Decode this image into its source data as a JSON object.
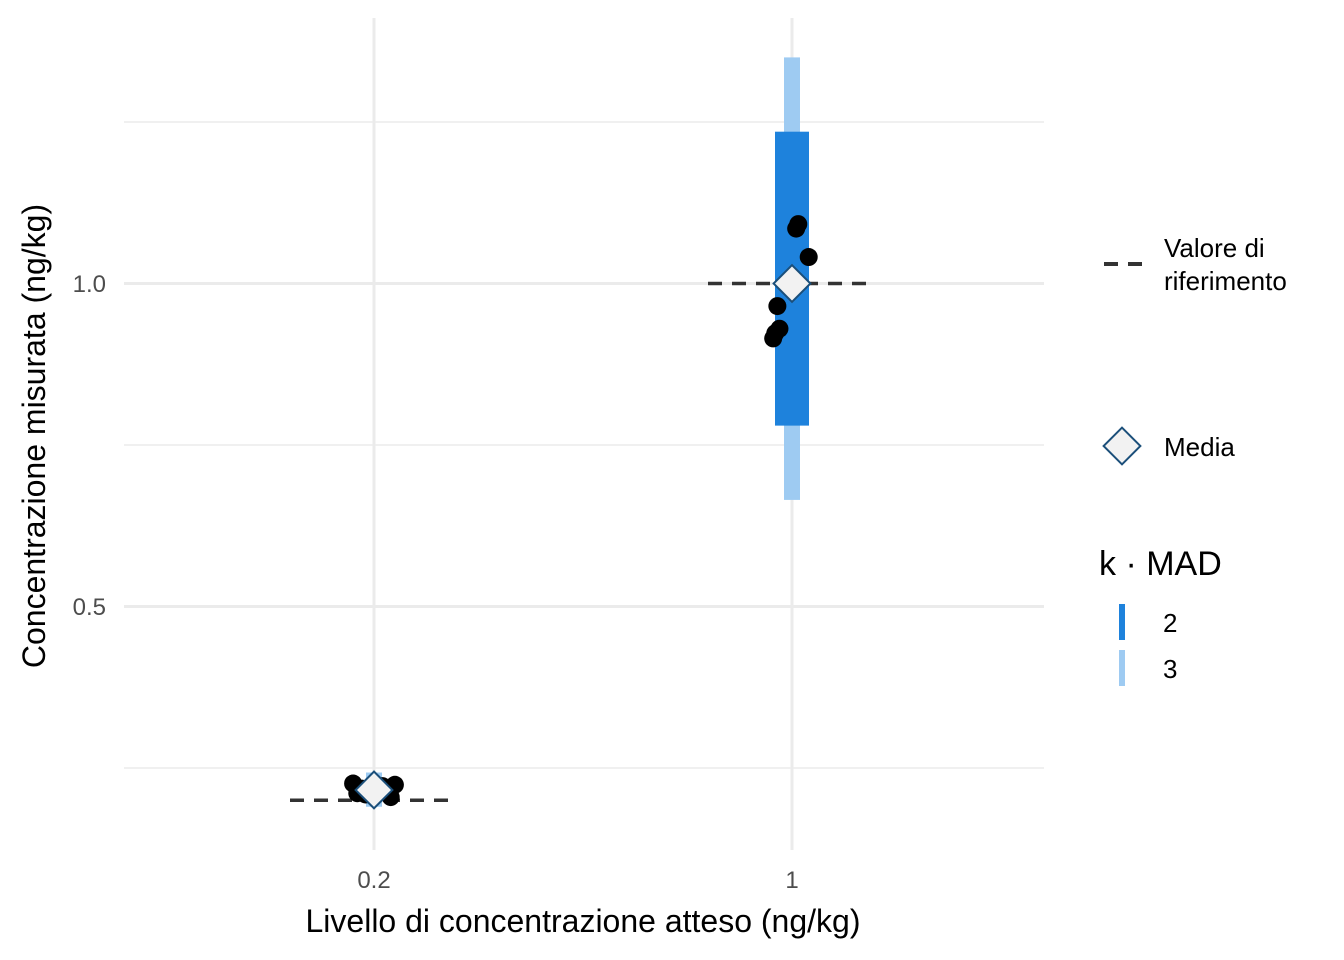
{
  "chart_data": {
    "type": "scatter",
    "xlabel": "Livello di concentrazione atteso (ng/kg)",
    "ylabel": "Concentrazione misurata (ng/kg)",
    "x_categories": [
      "0.2",
      "1"
    ],
    "y_ticks": [
      "0.5",
      "1.0"
    ],
    "ylim": [
      0.18,
      1.44
    ],
    "grid": true,
    "legend_position": "right",
    "groups": [
      {
        "category": "0.2",
        "reference": 0.2,
        "mean": 0.216,
        "mad2": [
          0.205,
          0.227
        ],
        "mad3": [
          0.19,
          0.243
        ],
        "points": [
          {
            "dx": -0.05,
            "y": 0.226
          },
          {
            "dx": -0.03,
            "y": 0.218
          },
          {
            "dx": -0.02,
            "y": 0.209
          },
          {
            "dx": 0.0,
            "y": 0.213
          },
          {
            "dx": 0.02,
            "y": 0.222
          },
          {
            "dx": 0.03,
            "y": 0.212
          },
          {
            "dx": 0.04,
            "y": 0.205
          },
          {
            "dx": 0.05,
            "y": 0.224
          },
          {
            "dx": 0.01,
            "y": 0.217
          },
          {
            "dx": -0.04,
            "y": 0.211
          }
        ]
      },
      {
        "category": "1",
        "reference": 1.0,
        "mean": 1.0,
        "mad2": [
          0.78,
          1.235
        ],
        "mad3": [
          0.665,
          1.35
        ],
        "points": [
          {
            "dx": 0.01,
            "y": 1.085
          },
          {
            "dx": 0.015,
            "y": 1.092
          },
          {
            "dx": 0.04,
            "y": 1.041
          },
          {
            "dx": -0.035,
            "y": 0.965
          },
          {
            "dx": -0.03,
            "y": 0.93
          },
          {
            "dx": -0.045,
            "y": 0.915
          },
          {
            "dx": -0.04,
            "y": 0.923
          }
        ]
      }
    ],
    "legend": {
      "reference_label_line1": "Valore di",
      "reference_label_line2": "riferimento",
      "mean_label": "Media",
      "mad_title": "k · MAD",
      "mad_levels": [
        {
          "label": "2",
          "color": "#1e82dc"
        },
        {
          "label": "3",
          "color": "#9ecbf2"
        }
      ]
    },
    "colors": {
      "mad2": "#1e82dc",
      "mad3": "#9ecbf2",
      "points": "#000000",
      "reference_line": "#333333",
      "mean_fill": "#f2f2f2",
      "mean_stroke": "#1b4f7a"
    }
  }
}
